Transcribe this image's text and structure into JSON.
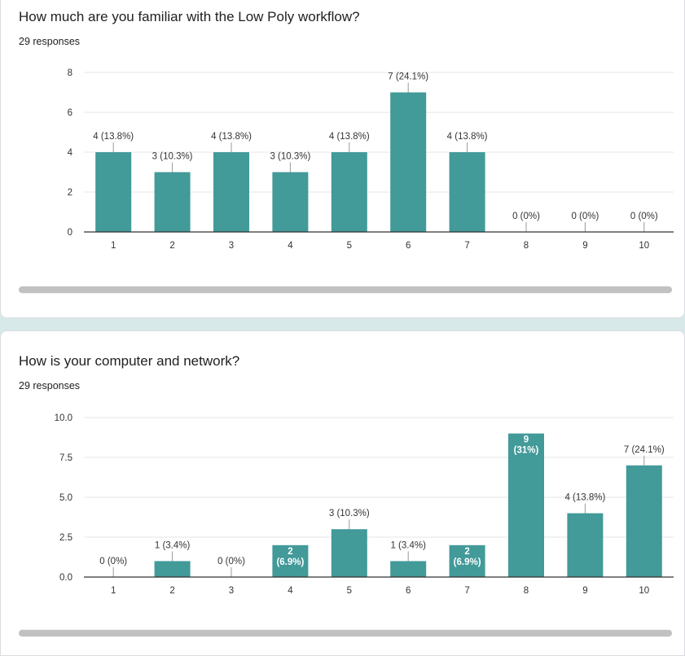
{
  "colors": {
    "bar": "#429a99",
    "grid": "#e6e6e6",
    "axis": "#333333",
    "label": "#333333",
    "inside_label": "#ffffff"
  },
  "charts": [
    {
      "title": "How much are you familiar with the Low Poly workflow?",
      "responses": "29 responses"
    },
    {
      "title": "How is your computer and network?",
      "responses": "29 responses"
    }
  ],
  "chart_data": [
    {
      "type": "bar",
      "title": "How much are you familiar with the Low Poly workflow?",
      "subtitle": "29 responses",
      "xlabel": "",
      "ylabel": "",
      "categories": [
        "1",
        "2",
        "3",
        "4",
        "5",
        "6",
        "7",
        "8",
        "9",
        "10"
      ],
      "values": [
        4,
        3,
        4,
        3,
        4,
        7,
        4,
        0,
        0,
        0
      ],
      "data_labels": [
        "4 (13.8%)",
        "3 (10.3%)",
        "4 (13.8%)",
        "3 (10.3%)",
        "4 (13.8%)",
        "7 (24.1%)",
        "4 (13.8%)",
        "0 (0%)",
        "0 (0%)",
        "0 (0%)"
      ],
      "yticks": [
        "0",
        "2",
        "4",
        "6",
        "8"
      ],
      "ylim": [
        0,
        8
      ],
      "grid": true,
      "legend": "none"
    },
    {
      "type": "bar",
      "title": "How is your computer and network?",
      "subtitle": "29 responses",
      "xlabel": "",
      "ylabel": "",
      "categories": [
        "1",
        "2",
        "3",
        "4",
        "5",
        "6",
        "7",
        "8",
        "9",
        "10"
      ],
      "values": [
        0,
        1,
        0,
        2,
        3,
        1,
        2,
        9,
        4,
        7
      ],
      "data_labels": [
        "0 (0%)",
        "1 (3.4%)",
        "0 (0%)",
        "2 (6.9%)",
        "3 (10.3%)",
        "1 (3.4%)",
        "2 (6.9%)",
        "9 (31%)",
        "4 (13.8%)",
        "7 (24.1%)"
      ],
      "yticks": [
        "0.0",
        "2.5",
        "5.0",
        "7.5",
        "10.0"
      ],
      "ylim": [
        0,
        10
      ],
      "grid": true,
      "legend": "none"
    }
  ]
}
